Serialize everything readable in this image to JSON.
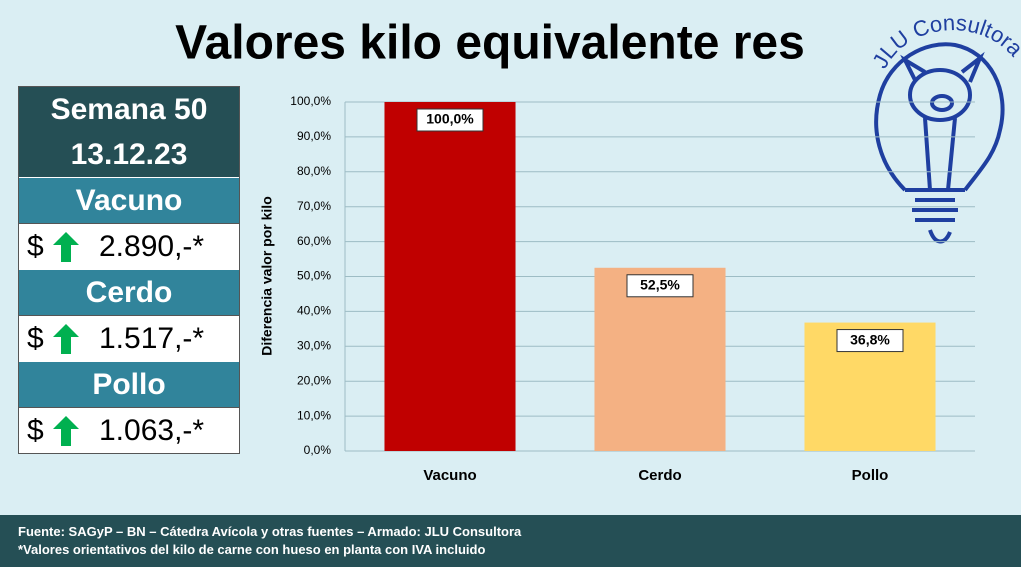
{
  "chart_data": {
    "type": "bar",
    "title": "Valores kilo equivalente res",
    "y_label": "Diferencia valor por kilo",
    "categories": [
      "Vacuno",
      "Cerdo",
      "Pollo"
    ],
    "values": [
      100,
      52.5,
      36.8
    ],
    "value_labels": [
      "100,0%",
      "52,5%",
      "36,8%"
    ],
    "colors": [
      "#c00000",
      "#f4b183",
      "#ffd966"
    ],
    "ylim": [
      0,
      100
    ],
    "yticks": [
      {
        "value": 0,
        "label": "0,0%"
      },
      {
        "value": 10,
        "label": "10,0%"
      },
      {
        "value": 20,
        "label": "20,0%"
      },
      {
        "value": 30,
        "label": "30,0%"
      },
      {
        "value": 40,
        "label": "40,0%"
      },
      {
        "value": 50,
        "label": "50,0%"
      },
      {
        "value": 60,
        "label": "60,0%"
      },
      {
        "value": 70,
        "label": "70,0%"
      },
      {
        "value": 80,
        "label": "80,0%"
      },
      {
        "value": 90,
        "label": "90,0%"
      },
      {
        "value": 100,
        "label": "100,0%"
      }
    ],
    "grid": true
  },
  "panel": {
    "week": "Semana 50",
    "date": "13.12.23",
    "items": [
      {
        "name": "Vacuno",
        "currency": "$",
        "price": "2.890,-*"
      },
      {
        "name": "Cerdo",
        "currency": "$",
        "price": "1.517,-*"
      },
      {
        "name": "Pollo",
        "currency": "$",
        "price": "1.063,-*"
      }
    ]
  },
  "logo": "JLU Consultora©",
  "footer": {
    "lines": [
      "Fuente: SAGyP  – BN – Cátedra Avícola y otras fuentes – Armado:  JLU Consultora",
      "*Valores orientativos del kilo de carne con hueso en planta con IVA  incluido"
    ]
  }
}
